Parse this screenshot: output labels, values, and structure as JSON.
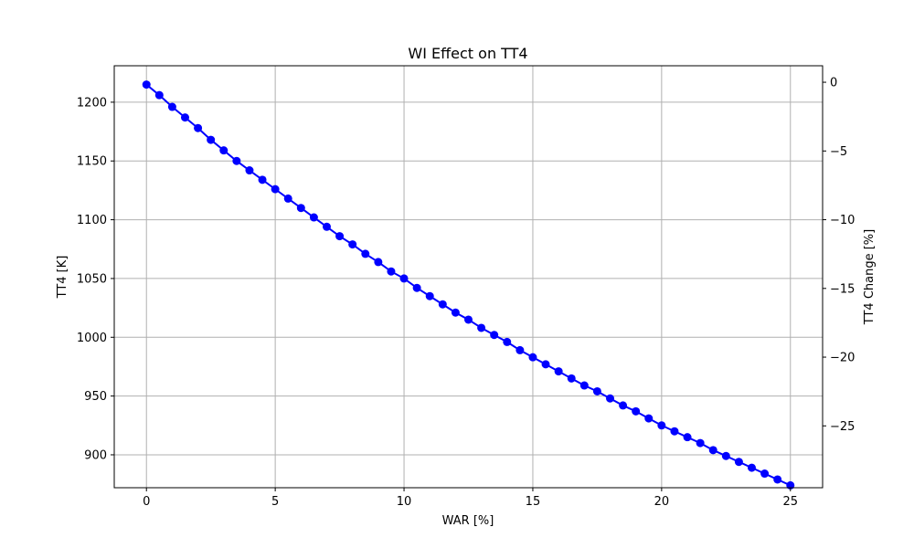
{
  "chart_data": {
    "type": "line",
    "title": "WI Effect on TT4",
    "xlabel": "WAR [%]",
    "ylabel": "TT4 [K]",
    "y2label": "TT4 Change [%]",
    "xlim": [
      -1.25,
      26.25
    ],
    "ylim": [
      872,
      1231
    ],
    "y2lim": [
      -29.5,
      1.2
    ],
    "xticks": [
      0,
      5,
      10,
      15,
      20,
      25
    ],
    "yticks": [
      900,
      950,
      1000,
      1050,
      1100,
      1150,
      1200
    ],
    "y2ticks": [
      0,
      -5,
      -10,
      -15,
      -20,
      -25
    ],
    "grid": true,
    "series": [
      {
        "color": "#0000ff",
        "marker": "circle",
        "x": [
          0,
          0.5,
          1,
          1.5,
          2,
          2.5,
          3,
          3.5,
          4,
          4.5,
          5,
          5.5,
          6,
          6.5,
          7,
          7.5,
          8,
          8.5,
          9,
          9.5,
          10,
          10.5,
          11,
          11.5,
          12,
          12.5,
          13,
          13.5,
          14,
          14.5,
          15,
          15.5,
          16,
          16.5,
          17,
          17.5,
          18,
          18.5,
          19,
          19.5,
          20,
          20.5,
          21,
          21.5,
          22,
          22.5,
          23,
          23.5,
          24,
          24.5,
          25
        ],
        "y": [
          1215,
          1206,
          1196,
          1187,
          1178,
          1168,
          1159,
          1150,
          1142,
          1134,
          1126,
          1118,
          1110,
          1102,
          1094,
          1086,
          1079,
          1071,
          1064,
          1056,
          1050,
          1042,
          1035,
          1028,
          1021,
          1015,
          1008,
          1002,
          996,
          989,
          983,
          977,
          971,
          965,
          959,
          954,
          948,
          942,
          937,
          931,
          925,
          920,
          915,
          910,
          904,
          899,
          894,
          889,
          884,
          879,
          874
        ]
      }
    ]
  }
}
